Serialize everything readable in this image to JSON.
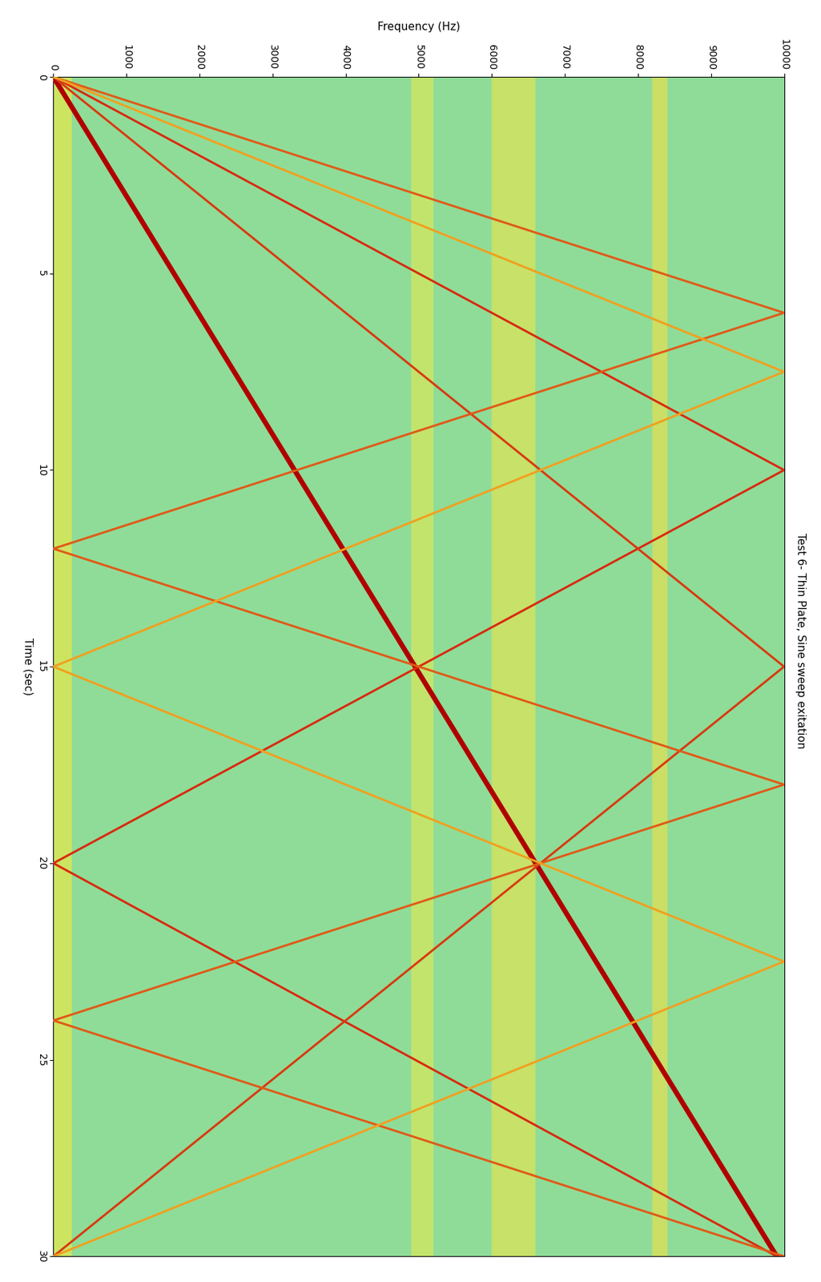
{
  "chart_data": {
    "type": "line",
    "title": "Test 6- Thin Plate, Sine sweep exitation",
    "x_label": "Frequency (Hz)",
    "y_label": "Time (sec)",
    "xlim": [
      0,
      10000
    ],
    "xticks": [
      0,
      1000,
      2000,
      3000,
      4000,
      5000,
      6000,
      7000,
      8000,
      9000,
      10000
    ],
    "ylim": [
      30,
      0
    ],
    "yticks": [
      0,
      5,
      10,
      15,
      20,
      25,
      30
    ],
    "grid": false,
    "background": "#8fdc98",
    "bands": [
      {
        "from": 0,
        "to": 250,
        "color": "#e8e84a"
      },
      {
        "from": 4900,
        "to": 5200,
        "color": "#d8e85a"
      },
      {
        "from": 6000,
        "to": 6600,
        "color": "#e0e455"
      },
      {
        "from": 8200,
        "to": 8400,
        "color": "#e6e050"
      }
    ],
    "series": [
      {
        "color": "#b00000",
        "x": [
          0,
          9900
        ],
        "y": [
          0,
          30
        ]
      },
      {
        "color": "#d82a10",
        "x": [
          0,
          10000,
          0,
          9900
        ],
        "y": [
          0,
          10,
          20,
          30
        ]
      },
      {
        "color": "#d83a10",
        "x": [
          0,
          10000,
          0
        ],
        "y": [
          0,
          15,
          30
        ]
      },
      {
        "color": "#e05a18",
        "x": [
          0,
          10000,
          0,
          10000,
          0,
          10000
        ],
        "y": [
          0,
          6,
          12,
          18,
          24,
          30
        ]
      },
      {
        "color": "#f0a020",
        "x": [
          0,
          10000,
          0,
          10000,
          0
        ],
        "y": [
          0,
          7.5,
          15,
          22.5,
          30
        ]
      }
    ]
  }
}
